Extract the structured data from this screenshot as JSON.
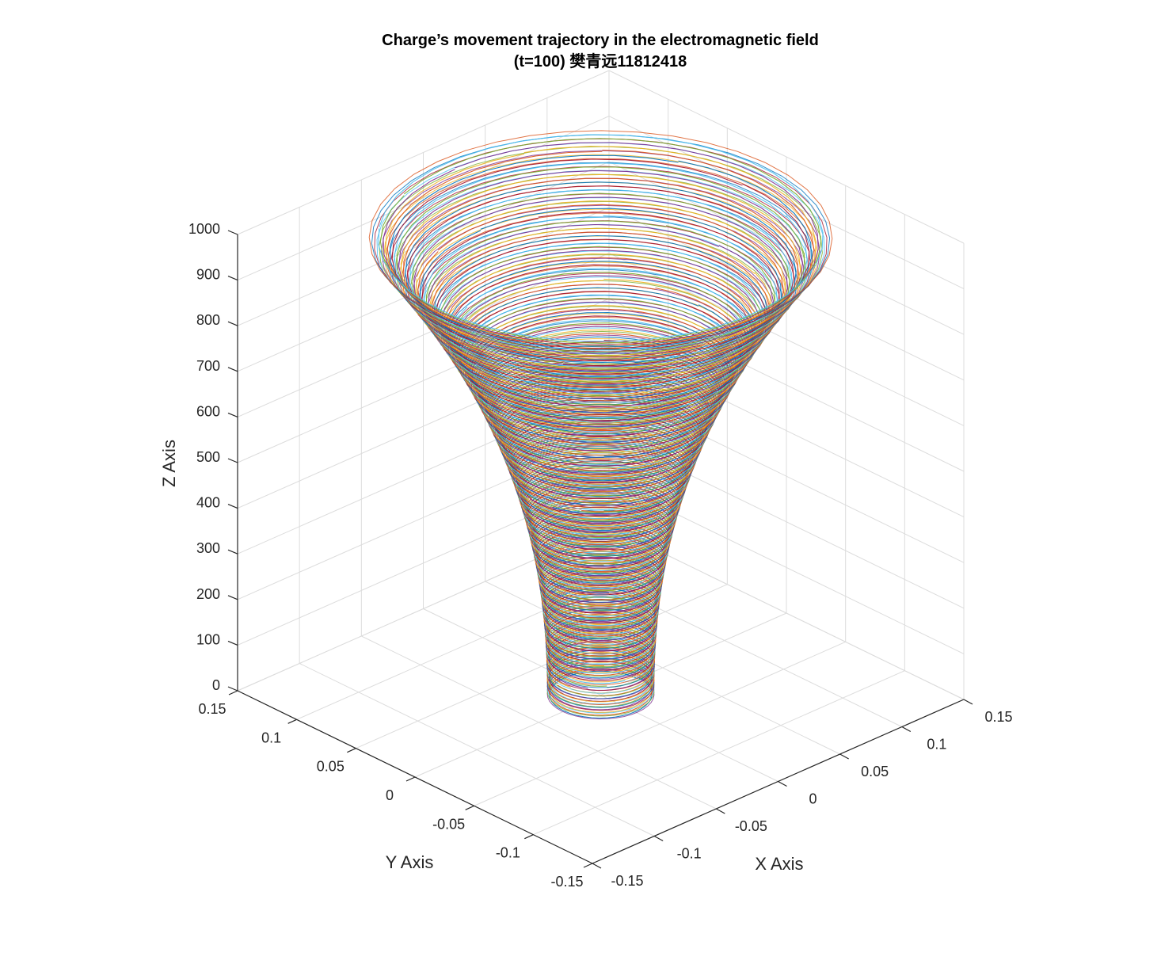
{
  "figure": {
    "background": "#ffffff"
  },
  "chart_data": {
    "type": "line3d",
    "title": "Charge’s movement trajectory in the electromagnetic field",
    "subtitle": "(t=100) 樊青远11812418",
    "xlabel": "X Axis",
    "ylabel": "Y Axis",
    "zlabel": "Z Axis",
    "xlim": [
      -0.15,
      0.15
    ],
    "ylim": [
      -0.15,
      0.15
    ],
    "zlim": [
      0,
      1000
    ],
    "x_ticks": [
      "-0.15",
      "-0.1",
      "-0.05",
      "0",
      "0.05",
      "0.1",
      "0.15"
    ],
    "y_ticks": [
      "0.15",
      "0.1",
      "0.05",
      "0",
      "-0.05",
      "-0.1",
      "-0.15"
    ],
    "z_ticks": [
      "1000",
      "900",
      "800",
      "700",
      "600",
      "500",
      "400",
      "300",
      "200",
      "100",
      "0"
    ],
    "grid": true,
    "legend": null,
    "description": "Many overlapping helical trajectories (multi-colored, MATLAB default color order) forming a funnel: narrow radius (~0.03) near z=0 widening to ~0.13 near z=1000",
    "series_colors": [
      "#0072BD",
      "#D95319",
      "#EDB120",
      "#7E2F8E",
      "#77AC30",
      "#4DBEEE",
      "#A2142F"
    ],
    "shape": {
      "bottom_radius_approx": 0.03,
      "top_radius_approx": 0.13,
      "z_start": 0,
      "z_end": 1000
    }
  }
}
